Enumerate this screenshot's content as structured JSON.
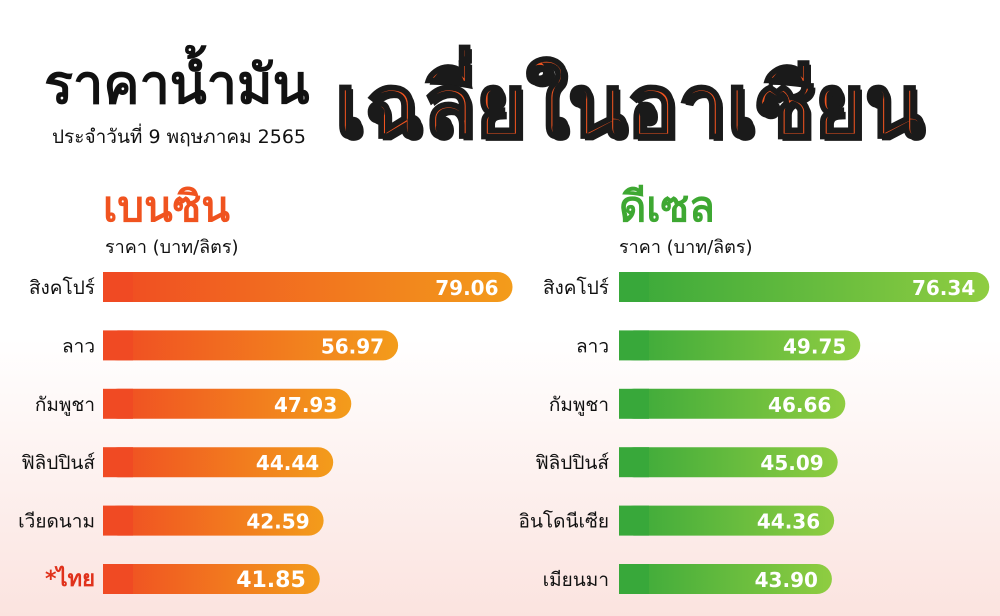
{
  "header": {
    "title_main": "ราคาน้ำมัน",
    "title_accent": "เฉลี่ยในอาเซียน",
    "subtitle": "ประจำวันที่ 9 พฤษภาคม 2565"
  },
  "colors": {
    "petrol_start": "#f04a23",
    "petrol_end": "#f39c1b",
    "diesel_start": "#38a83a",
    "diesel_end": "#8fcd41",
    "highlight": "#e0311b"
  },
  "chart_data": [
    {
      "type": "bar",
      "title": "เบนซิน",
      "ylabel": "ราคา (บาท/ลิตร)",
      "categories": [
        "สิงคโปร์",
        "ลาว",
        "กัมพูชา",
        "ฟิลิปปินส์",
        "เวียดนาม",
        "*ไทย"
      ],
      "values": [
        79.06,
        56.97,
        47.93,
        44.44,
        42.59,
        41.85
      ],
      "value_labels": [
        "79.06",
        "56.97",
        "47.93",
        "44.44",
        "42.59",
        "41.85"
      ],
      "highlight_index": 5,
      "orientation": "horizontal"
    },
    {
      "type": "bar",
      "title": "ดีเซล",
      "ylabel": "ราคา (บาท/ลิตร)",
      "categories": [
        "สิงคโปร์",
        "ลาว",
        "กัมพูชา",
        "ฟิลิปปินส์",
        "อินโดนีเซีย",
        "เมียนมา"
      ],
      "values": [
        76.34,
        49.75,
        46.66,
        45.09,
        44.36,
        43.9
      ],
      "value_labels": [
        "76.34",
        "49.75",
        "46.66",
        "45.09",
        "44.36",
        "43.90"
      ],
      "orientation": "horizontal"
    }
  ]
}
